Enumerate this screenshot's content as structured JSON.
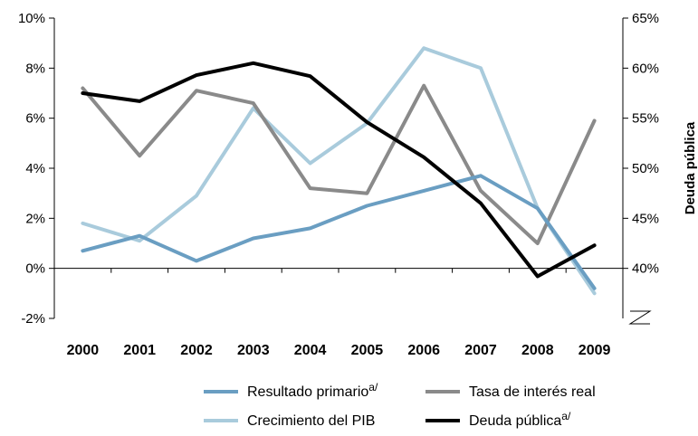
{
  "chart_data": {
    "type": "line",
    "categories": [
      "2000",
      "2001",
      "2002",
      "2003",
      "2004",
      "2005",
      "2006",
      "2007",
      "2008",
      "2009"
    ],
    "left_axis": {
      "ticks": [
        "10%",
        "8%",
        "6%",
        "4%",
        "2%",
        "0%",
        "-2%"
      ],
      "ylim": [
        -2,
        10
      ]
    },
    "right_axis": {
      "ticks": [
        "65%",
        "60%",
        "55%",
        "50%",
        "45%",
        "40%"
      ],
      "ylim": [
        35,
        65
      ],
      "label": "Deuda pública",
      "break_marker": true
    },
    "series": [
      {
        "name": "Resultado primario",
        "superscript": "a/",
        "axis": "left",
        "color": "#6a9ec2",
        "values": [
          0.7,
          1.3,
          0.3,
          1.2,
          1.6,
          2.5,
          3.1,
          3.7,
          2.4,
          -0.8
        ]
      },
      {
        "name": "Tasa de interés real",
        "axis": "left",
        "color": "#8a8a8a",
        "values": [
          7.2,
          4.5,
          7.1,
          6.6,
          3.2,
          3.0,
          7.3,
          3.1,
          1.0,
          5.9
        ]
      },
      {
        "name": "Crecimiento del PIB",
        "axis": "left",
        "color": "#a9cbdc",
        "values": [
          1.8,
          1.1,
          2.9,
          6.4,
          4.2,
          5.8,
          8.8,
          8.0,
          2.4,
          -1.0
        ]
      },
      {
        "name": "Deuda pública",
        "superscript": "a/",
        "axis": "right",
        "color": "#000000",
        "values": [
          57.5,
          56.7,
          59.3,
          60.5,
          59.2,
          54.6,
          51.1,
          46.5,
          39.2,
          42.3
        ]
      }
    ],
    "legend": {
      "position": "bottom",
      "columns": 2
    },
    "grid": false
  }
}
